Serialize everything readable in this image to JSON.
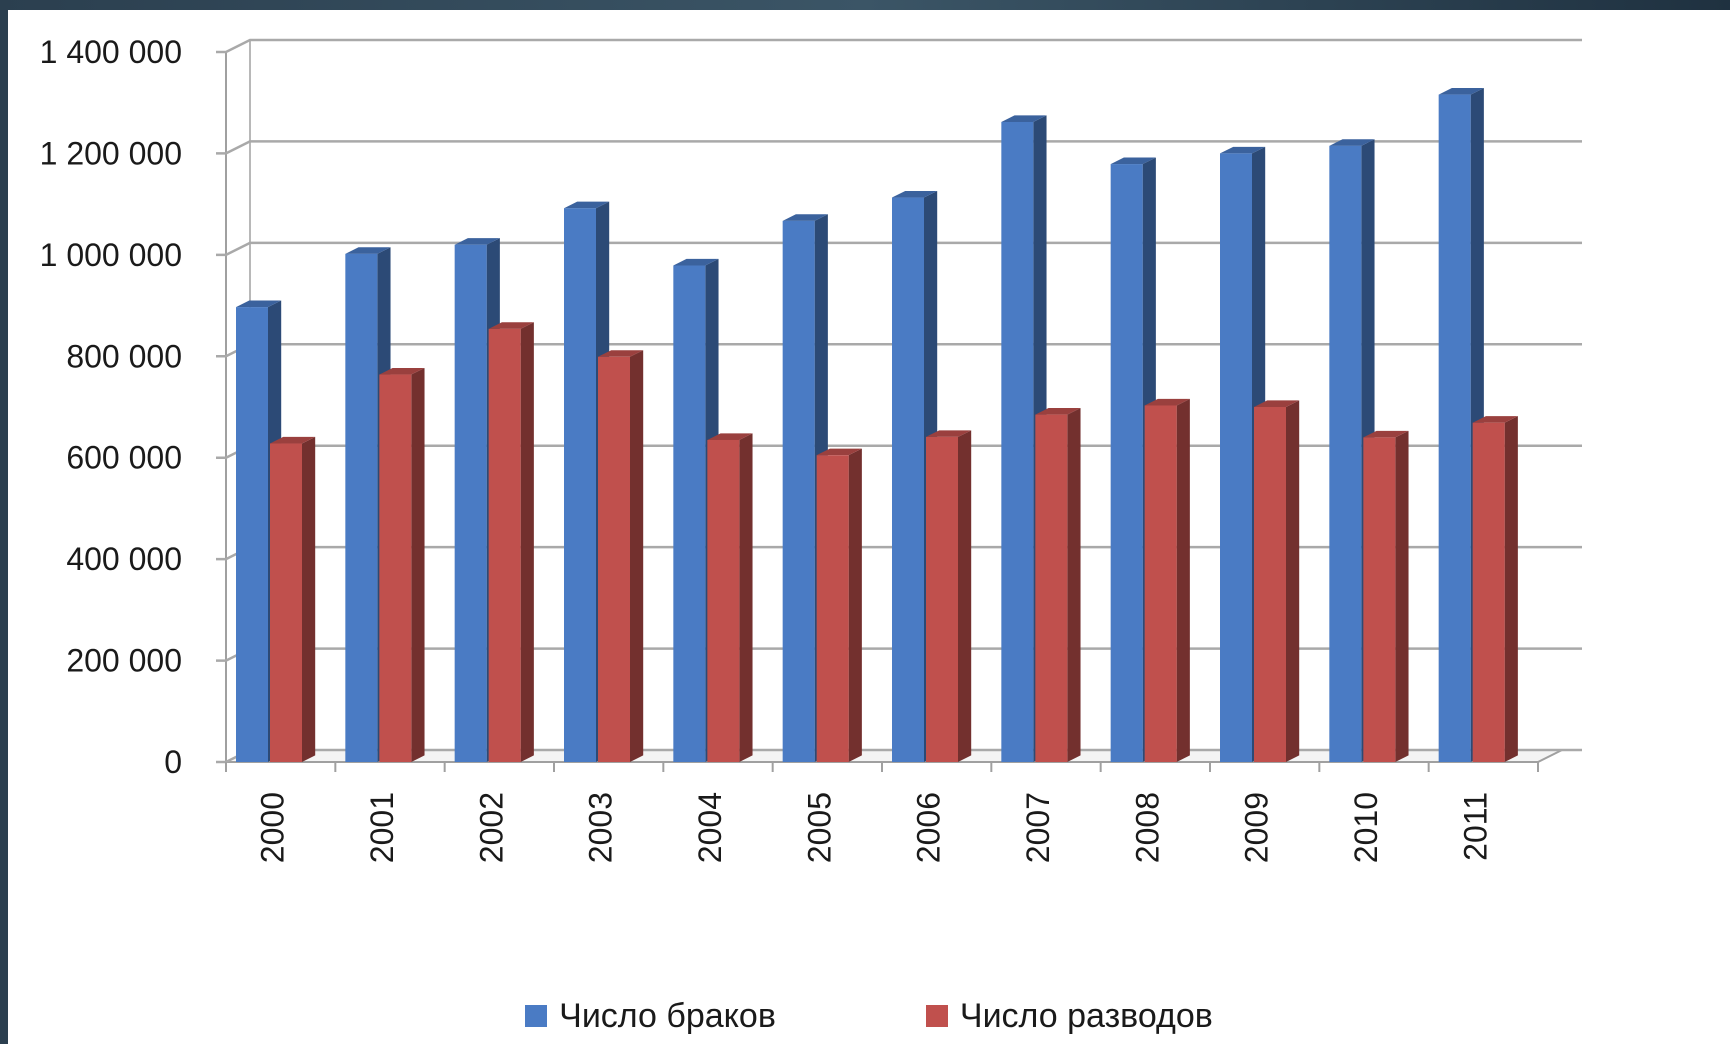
{
  "chart_data": {
    "type": "bar",
    "categories": [
      "2000",
      "2001",
      "2002",
      "2003",
      "2004",
      "2005",
      "2006",
      "2007",
      "2008",
      "2009",
      "2010",
      "2011"
    ],
    "series": [
      {
        "name": "Число браков",
        "color": "#4a7bc4",
        "values": [
          897000,
          1002000,
          1020000,
          1092000,
          979000,
          1067000,
          1113000,
          1262000,
          1179000,
          1200000,
          1215000,
          1316000
        ]
      },
      {
        "name": "Число разводов",
        "color": "#c0504d",
        "values": [
          628000,
          764000,
          854000,
          799000,
          635000,
          605000,
          641000,
          685000,
          703000,
          700000,
          640000,
          669000
        ]
      }
    ],
    "ylim": [
      0,
      1400000
    ],
    "yticks": [
      {
        "value": 0,
        "label": "0"
      },
      {
        "value": 200000,
        "label": "200 000"
      },
      {
        "value": 400000,
        "label": "400 000"
      },
      {
        "value": 600000,
        "label": "600 000"
      },
      {
        "value": 800000,
        "label": "800 000"
      },
      {
        "value": 1000000,
        "label": "1 000 000"
      },
      {
        "value": 1200000,
        "label": "1 200 000"
      },
      {
        "value": 1400000,
        "label": "1 400 000"
      }
    ],
    "title": "",
    "xlabel": "",
    "ylabel": "",
    "grid": true,
    "style": "3d-clustered-column",
    "legend": "bottom"
  }
}
